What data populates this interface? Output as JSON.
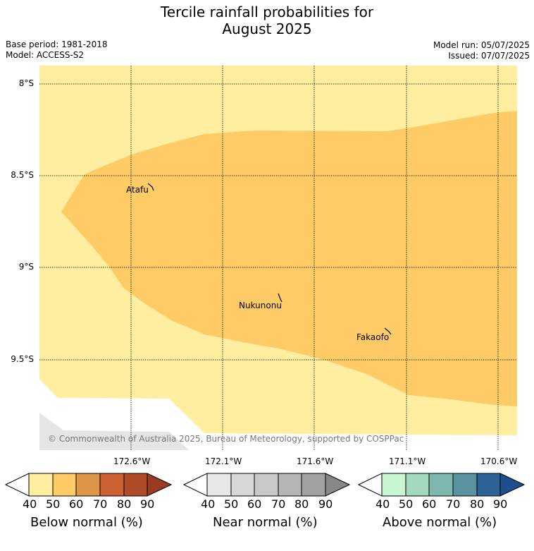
{
  "title_line1": "Tercile rainfall probabilities for",
  "title_line2": "August 2025",
  "base_period": "Base period: 1981-2018",
  "model": "Model: ACCESS-S2",
  "model_run": "Model run: 05/07/2025",
  "issued": "Issued: 07/07/2025",
  "copyright": "© Commonwealth of Australia 2025, Bureau of Meteorology, supported by COSPPac",
  "lat_labels": [
    "8°S",
    "8.5°S",
    "9°S",
    "9.5°S"
  ],
  "lon_labels": [
    "172.6°W",
    "172.1°W",
    "171.6°W",
    "171.1°W",
    "170.6°W"
  ],
  "places": [
    "Atafu",
    "Nukunonu",
    "Fakaofo"
  ],
  "colors": {
    "below_40": "#ffeda0",
    "below_50": "#fecb66",
    "below_60": "#df9547",
    "below_70": "#cc6233",
    "below_80": "#b04b28",
    "below_90": "#9a3a20",
    "near_40": "#e6e6e6",
    "near_50": "#d7d7d7",
    "near_60": "#c8c8c8",
    "near_70": "#b5b5b5",
    "near_80": "#a1a1a1",
    "near_90": "#888888",
    "above_40": "#c8f5d2",
    "above_50": "#a3d9bd",
    "above_60": "#7fb8b0",
    "above_70": "#5a91a0",
    "above_80": "#2e6296",
    "above_90": "#1e4f8c",
    "land_mask": "#e5e5e5"
  },
  "colorbars": {
    "below": {
      "title": "Below normal (%)",
      "ticks": [
        "40",
        "50",
        "60",
        "70",
        "80",
        "90"
      ]
    },
    "near": {
      "title": "Near normal (%)",
      "ticks": [
        "40",
        "50",
        "60",
        "70",
        "80",
        "90"
      ]
    },
    "above": {
      "title": "Above normal (%)",
      "ticks": [
        "40",
        "50",
        "60",
        "70",
        "80",
        "90"
      ]
    }
  }
}
